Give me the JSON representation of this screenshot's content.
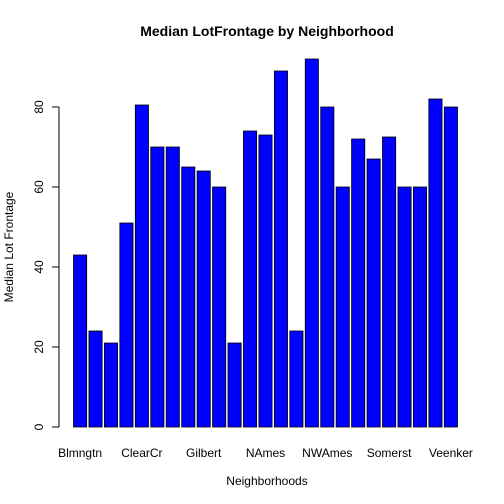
{
  "chart_data": {
    "type": "bar",
    "title": "Median LotFrontage by Neighborhood",
    "xlabel": "Neighborhoods",
    "ylabel": "Median Lot Frontage",
    "ylim": [
      0,
      95
    ],
    "yticks": [
      0,
      20,
      40,
      60,
      80
    ],
    "bar_color": "#0000ff",
    "x_tick_labels": [
      {
        "index": 0,
        "label": "Blmngtn"
      },
      {
        "index": 4,
        "label": "ClearCr"
      },
      {
        "index": 8,
        "label": "Gilbert"
      },
      {
        "index": 12,
        "label": "NAmes"
      },
      {
        "index": 16,
        "label": "NWAmes"
      },
      {
        "index": 20,
        "label": "Somerst"
      },
      {
        "index": 24,
        "label": "Veenker"
      }
    ],
    "values": [
      43,
      24,
      21,
      51,
      80.5,
      70,
      70,
      65,
      64,
      60,
      21,
      74,
      73,
      89,
      24,
      92,
      80,
      60,
      72,
      67,
      72.5,
      60,
      60,
      82,
      80
    ]
  }
}
